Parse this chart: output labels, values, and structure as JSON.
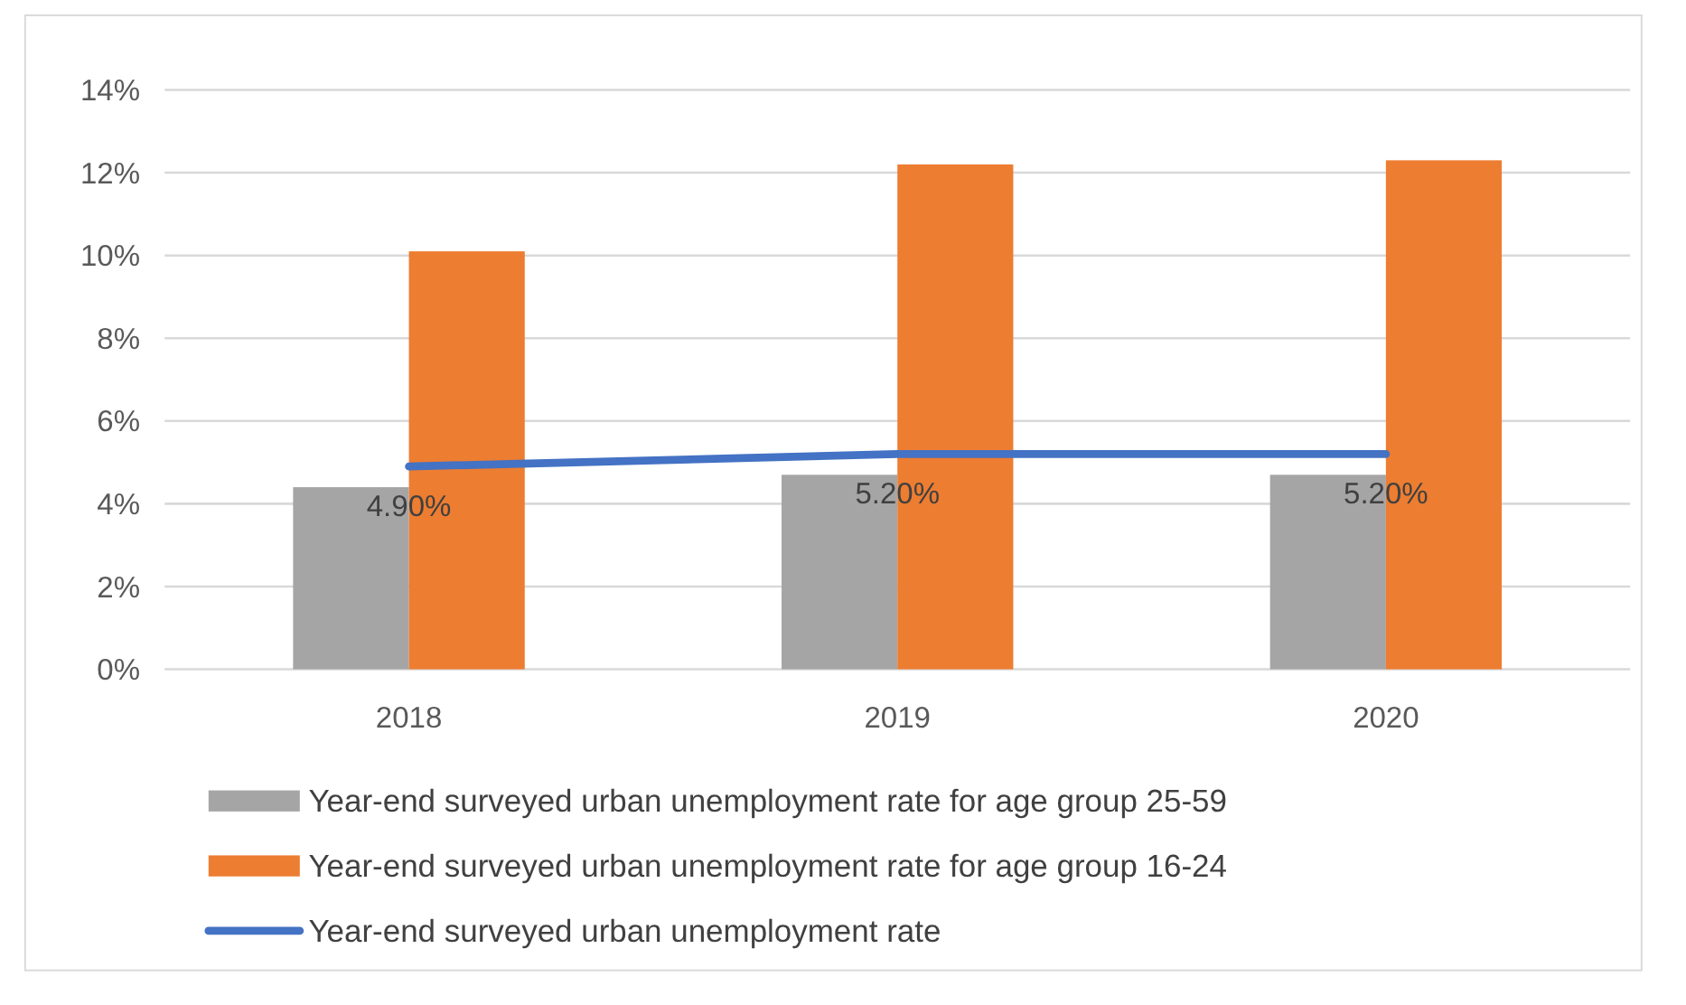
{
  "chart_data": {
    "type": "bar",
    "categories": [
      "2018",
      "2019",
      "2020"
    ],
    "series": [
      {
        "name": "Year-end surveyed urban unemployment rate for age group 25-59",
        "color": "#a5a5a5",
        "values": [
          4.4,
          4.7,
          4.7
        ]
      },
      {
        "name": "Year-end surveyed urban unemployment rate for age group 16-24",
        "color": "#ed7d31",
        "values": [
          10.1,
          12.2,
          12.3
        ]
      },
      {
        "name": "Year-end surveyed urban unemployment rate",
        "type": "line",
        "color": "#4472c4",
        "values": [
          4.9,
          5.2,
          5.2
        ],
        "value_labels": [
          "4.90%",
          "5.20%",
          "5.20%"
        ]
      }
    ],
    "ylim": [
      0,
      14
    ],
    "yticks": [
      {
        "value": 0,
        "label": "0%"
      },
      {
        "value": 2,
        "label": "2%"
      },
      {
        "value": 4,
        "label": "4%"
      },
      {
        "value": 6,
        "label": "6%"
      },
      {
        "value": 8,
        "label": "8%"
      },
      {
        "value": 10,
        "label": "10%"
      },
      {
        "value": 12,
        "label": "12%"
      },
      {
        "value": 14,
        "label": "14%"
      }
    ],
    "grid": "y",
    "legend": "bottom",
    "marker": "none"
  }
}
